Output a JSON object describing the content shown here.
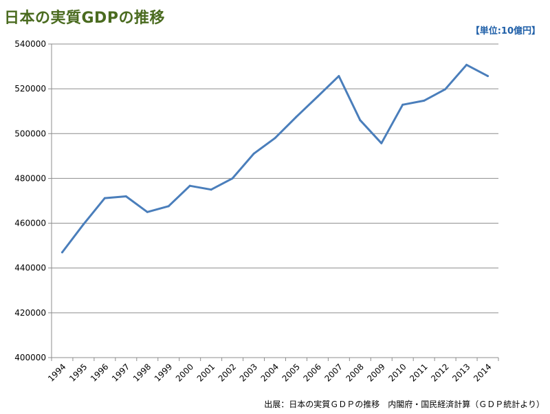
{
  "title": "日本の実質GDPの推移",
  "unit_label": "【単位:10億円】",
  "source_note": "出展：日本の実質ＧＤＰの推移　内閣府・国民経済計算（ＧＤＰ統計より）",
  "chart_data": {
    "type": "line",
    "title": "日本の実質GDPの推移",
    "xlabel": "",
    "ylabel": "",
    "x": [
      "1994",
      "1995",
      "1996",
      "1997",
      "1998",
      "1999",
      "2000",
      "2001",
      "2002",
      "2003",
      "2004",
      "2005",
      "2006",
      "2007",
      "2008",
      "2009",
      "2010",
      "2011",
      "2012",
      "2013",
      "2014"
    ],
    "series": [
      {
        "values": [
          447000,
          459500,
          471200,
          472000,
          465000,
          467600,
          476700,
          475000,
          480000,
          491000,
          498000,
          507500,
          516500,
          525700,
          506000,
          495700,
          512900,
          514700,
          519800,
          530700,
          525700
        ],
        "color": "#4a7ebb"
      }
    ],
    "ylim": [
      400000,
      540000
    ],
    "yticks": [
      "400000",
      "420000",
      "440000",
      "460000",
      "480000",
      "500000",
      "520000",
      "540000"
    ],
    "grid": true
  }
}
